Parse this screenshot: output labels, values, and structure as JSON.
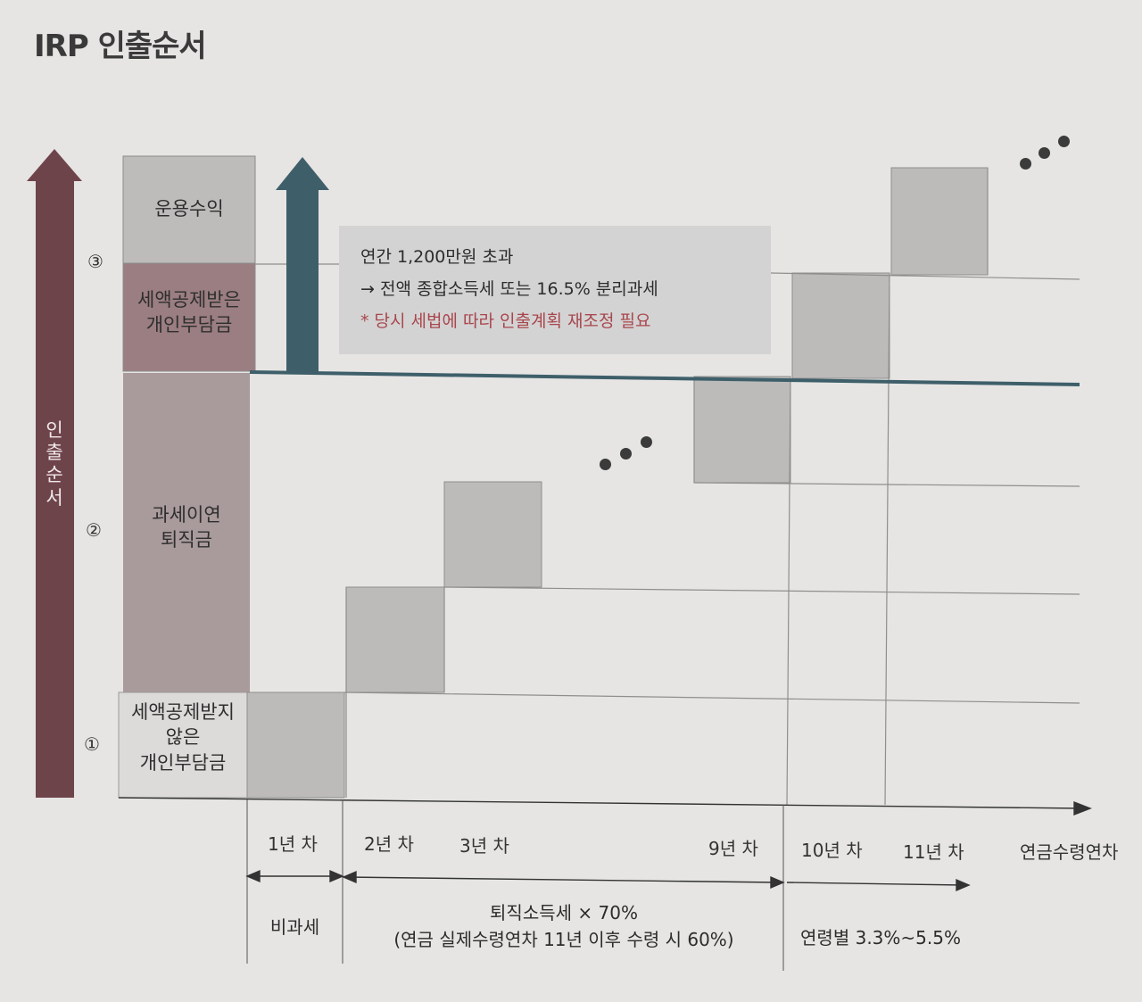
{
  "title": "IRP 인출순서",
  "axis_label": [
    "인",
    "출",
    "순",
    "서"
  ],
  "order_markers": [
    "③",
    "②",
    "①"
  ],
  "categories": {
    "returns": "운용수익",
    "deducted_1": "세액공제받은",
    "deducted_2": "개인부담금",
    "retire_1": "과세이연",
    "retire_2": "퇴직금",
    "nondeducted_1": "세액공제받지",
    "nondeducted_2": "않은",
    "nondeducted_3": "개인부담금"
  },
  "callout": {
    "line1": "연간 1,200만원 초과",
    "line2": "→ 전액 종합소득세 또는 16.5% 분리과세",
    "line3": "* 당시 세법에 따라 인출계획 재조정 필요"
  },
  "years": {
    "y1": "1년 차",
    "y2": "2년 차",
    "y3": "3년 차",
    "y9": "9년 차",
    "y10": "10년 차",
    "y11": "11년 차",
    "end": "연금수령연차"
  },
  "tax_notes": {
    "tax_free": "비과세",
    "retire_tax_1": "퇴직소득세 × 70%",
    "retire_tax_2": "(연금 실제수령연차 11년 이후 수령 시 60%)",
    "age_rate": "연령별 3.3%~5.5%"
  },
  "colors": {
    "background": "#e6e5e3",
    "arrow_maroon": "#6e444b",
    "arrow_teal": "#3e5f6a",
    "retire_fill": "#a99a9c",
    "deducted_fill": "#9b7e82",
    "returns_fill": "#bdbcbb",
    "block_fill": "#bcbbba",
    "callout_fill": "#d4d3d3",
    "callout_red": "#a8474e"
  }
}
